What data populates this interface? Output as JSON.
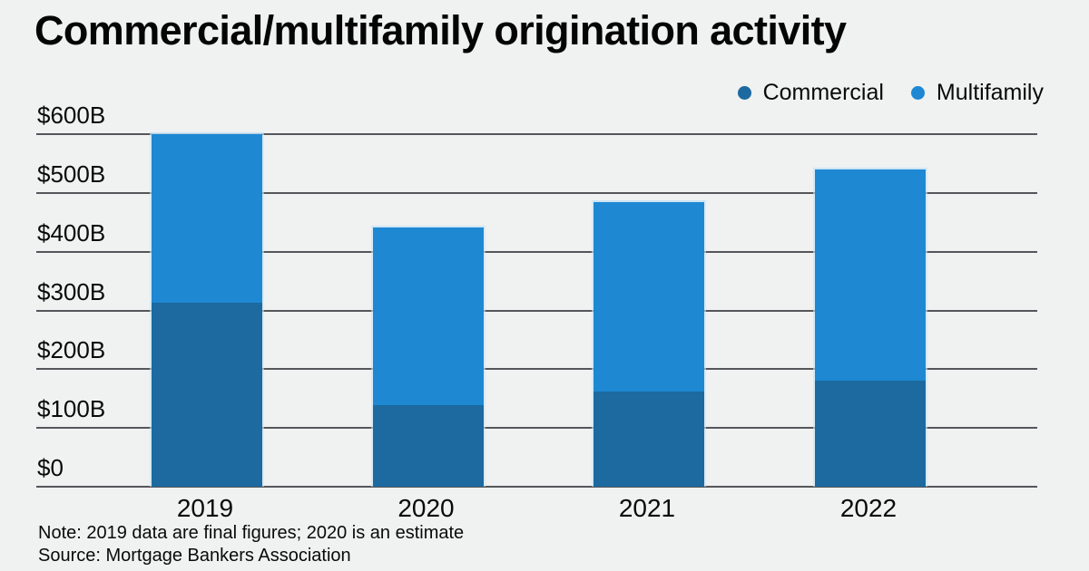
{
  "title": "Commercial/multifamily origination activity",
  "legend": [
    {
      "label": "Commercial",
      "color": "#1c6aa0"
    },
    {
      "label": "Multifamily",
      "color": "#1e88d2"
    }
  ],
  "note": "Note: 2019 data are final figures; 2020 is an estimate",
  "source": "Source: Mortgage Bankers Association",
  "colors": {
    "background": "#f0f1f1",
    "gridline": "#55565a",
    "text": "#0a0a0a",
    "commercial": "#1c6aa0",
    "multifamily": "#1e88d2"
  },
  "chart_data": {
    "type": "bar",
    "stacked": true,
    "title": "Commercial/multifamily origination activity",
    "categories": [
      "2019",
      "2020",
      "2021",
      "2022"
    ],
    "series": [
      {
        "name": "Commercial",
        "color": "#1c6aa0",
        "values": [
          313,
          139,
          162,
          181
        ]
      },
      {
        "name": "Multifamily",
        "color": "#1e88d2",
        "values": [
          287,
          302,
          323,
          359
        ]
      }
    ],
    "totals": [
      600,
      441,
      485,
      540
    ],
    "xlabel": "",
    "ylabel": "",
    "ylim": [
      0,
      600
    ],
    "yticks": [
      {
        "value": 0,
        "label": "$0"
      },
      {
        "value": 100,
        "label": "$100B"
      },
      {
        "value": 200,
        "label": "$200B"
      },
      {
        "value": 300,
        "label": "$300B"
      },
      {
        "value": 400,
        "label": "$400B"
      },
      {
        "value": 500,
        "label": "$500B"
      },
      {
        "value": 600,
        "label": "$600B"
      }
    ],
    "grid": true,
    "legend_position": "top-right",
    "units": "billions of US dollars"
  }
}
